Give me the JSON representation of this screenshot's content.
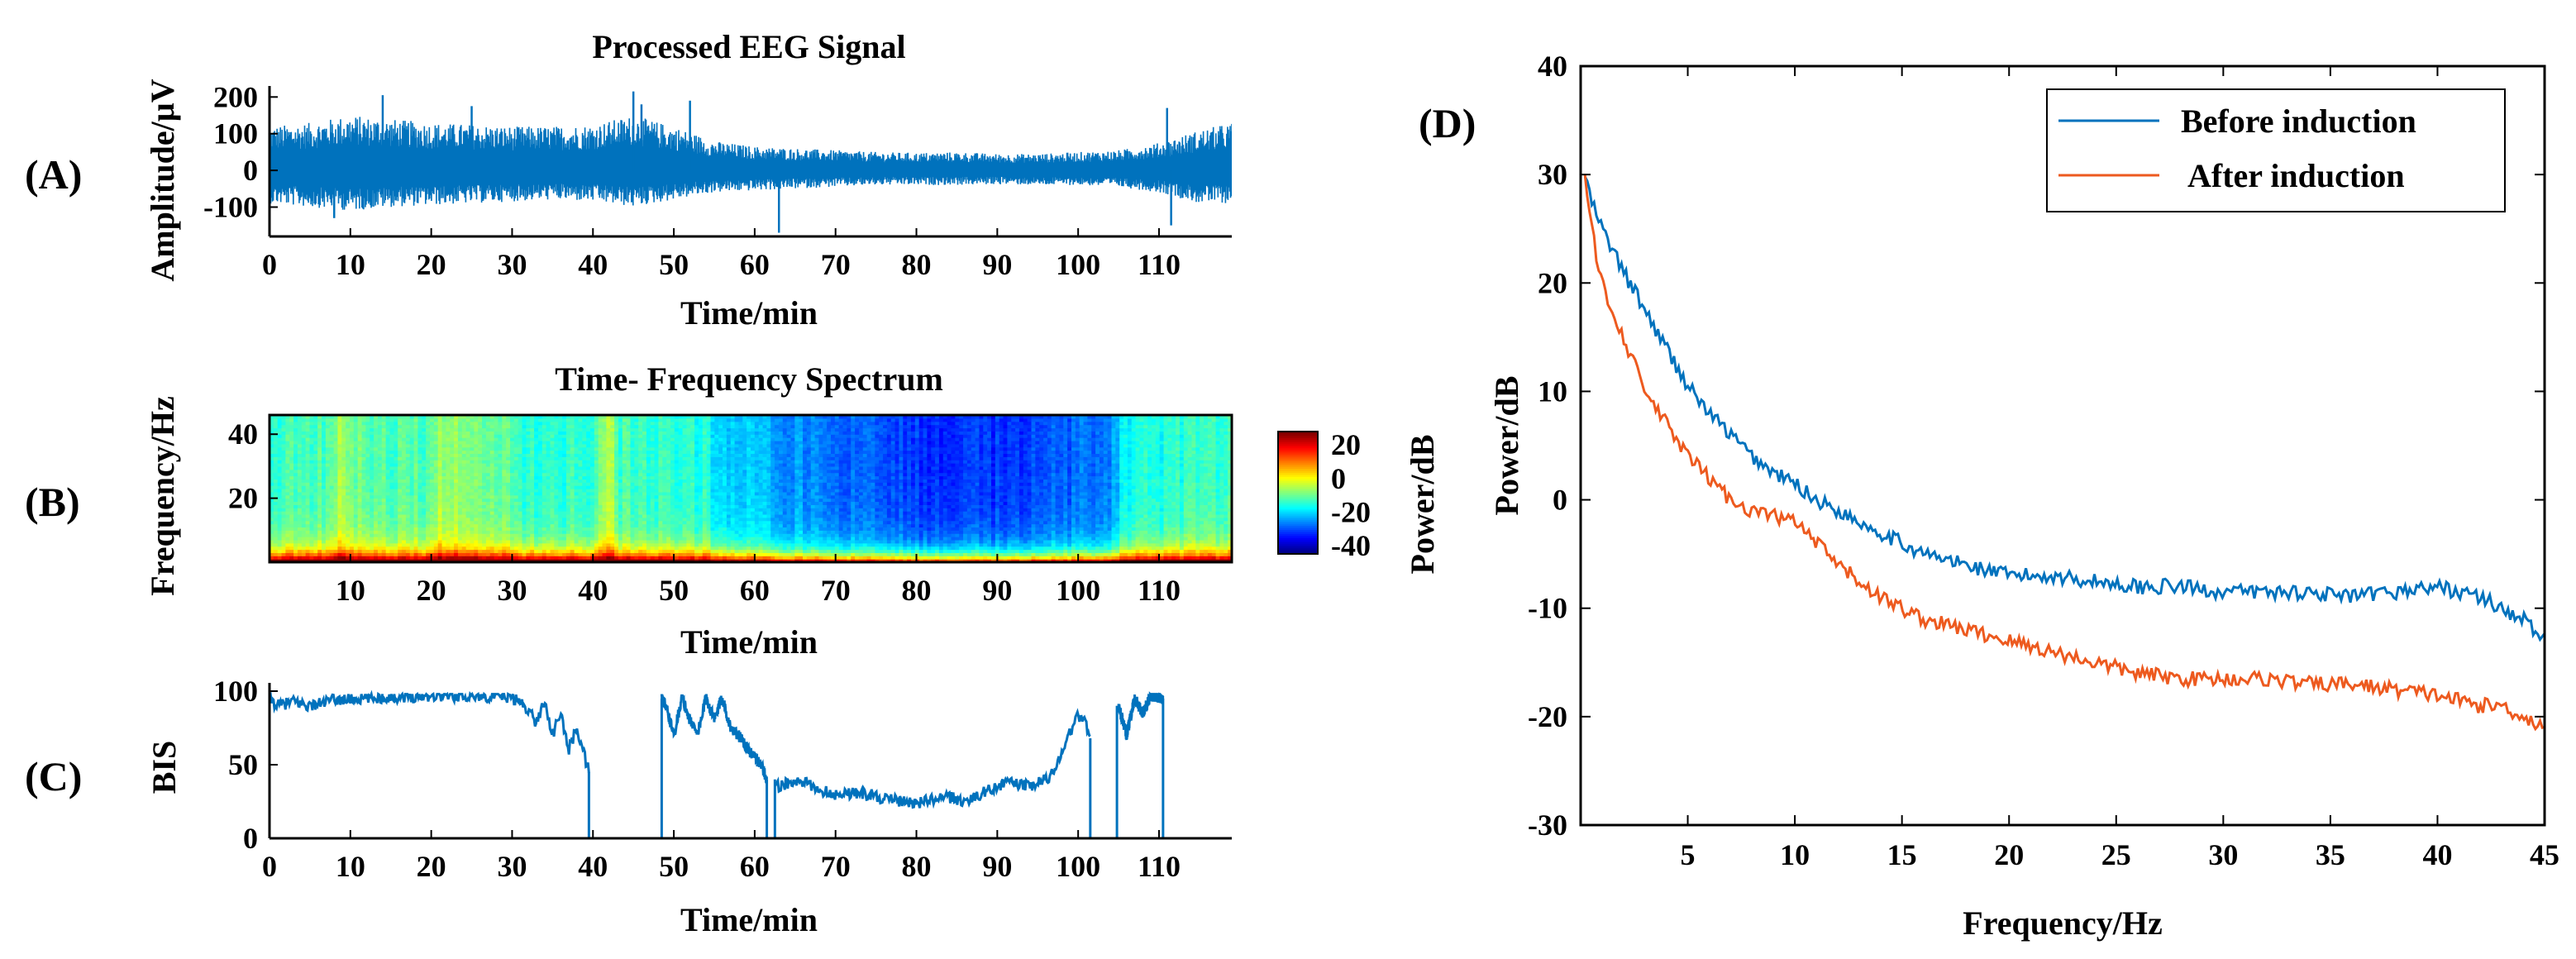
{
  "panels": {
    "A": {
      "label": "(A)"
    },
    "B": {
      "label": "(B)"
    },
    "C": {
      "label": "(C)"
    },
    "D": {
      "label": "(D)"
    }
  },
  "colors": {
    "blue": "#0072BD",
    "orange": "#ED5A1F",
    "axis": "#000000"
  },
  "chart_data": [
    {
      "id": "eeg",
      "type": "line",
      "title": "Processed EEG Signal",
      "xlabel": "Time/min",
      "ylabel": "Amplitude/µV",
      "xlim": [
        0,
        119
      ],
      "ylim": [
        -180,
        230
      ],
      "xticks": [
        0,
        10,
        20,
        30,
        40,
        50,
        60,
        70,
        80,
        90,
        100,
        110
      ],
      "yticks": [
        -100,
        0,
        100,
        200
      ],
      "envelope": {
        "t": [
          0,
          5,
          10,
          15,
          20,
          25,
          30,
          35,
          40,
          45,
          50,
          55,
          60,
          65,
          70,
          75,
          80,
          85,
          90,
          95,
          100,
          105,
          110,
          115,
          119
        ],
        "upper": [
          120,
          130,
          150,
          140,
          130,
          125,
          120,
          120,
          125,
          150,
          120,
          80,
          65,
          60,
          55,
          50,
          48,
          50,
          45,
          45,
          50,
          55,
          75,
          110,
          130
        ],
        "lower": [
          -90,
          -100,
          -110,
          -100,
          -95,
          -90,
          -85,
          -80,
          -85,
          -100,
          -80,
          -60,
          -55,
          -50,
          -45,
          -40,
          -40,
          -40,
          -38,
          -40,
          -40,
          -45,
          -60,
          -90,
          -90
        ]
      },
      "spikes": [
        {
          "t": 14,
          "v": 205
        },
        {
          "t": 45,
          "v": 215
        },
        {
          "t": 46,
          "v": 180
        },
        {
          "t": 52,
          "v": 190
        },
        {
          "t": 8,
          "v": -130
        },
        {
          "t": 63,
          "v": -170
        },
        {
          "t": 111,
          "v": 170
        },
        {
          "t": 111.5,
          "v": -150
        },
        {
          "t": 25,
          "v": 175
        }
      ]
    },
    {
      "id": "spectrogram",
      "type": "heatmap",
      "title": "Time- Frequency Spectrum",
      "xlabel": "Time/min",
      "ylabel": "Frequency/Hz",
      "xlim": [
        0,
        119
      ],
      "ylim": [
        0,
        46
      ],
      "xticks": [
        10,
        20,
        30,
        40,
        50,
        60,
        70,
        80,
        90,
        100,
        110
      ],
      "yticks": [
        20,
        40
      ],
      "colorbar": {
        "label": "Power/dB",
        "range": [
          -45,
          28
        ],
        "ticks": [
          20,
          0,
          -20,
          -40
        ]
      },
      "column_base_dB": [
        {
          "t": 0,
          "v": -14
        },
        {
          "t": 7,
          "v": -12
        },
        {
          "t": 9,
          "v": -6
        },
        {
          "t": 12,
          "v": -12
        },
        {
          "t": 19,
          "v": -12
        },
        {
          "t": 21,
          "v": -7
        },
        {
          "t": 29,
          "v": -11
        },
        {
          "t": 31,
          "v": -15
        },
        {
          "t": 40,
          "v": -14
        },
        {
          "t": 42,
          "v": -4
        },
        {
          "t": 43,
          "v": -13
        },
        {
          "t": 54,
          "v": -16
        },
        {
          "t": 56,
          "v": -21
        },
        {
          "t": 70,
          "v": -28
        },
        {
          "t": 80,
          "v": -32
        },
        {
          "t": 90,
          "v": -33
        },
        {
          "t": 97,
          "v": -30
        },
        {
          "t": 104,
          "v": -26
        },
        {
          "t": 106,
          "v": -17
        },
        {
          "t": 119,
          "v": -13
        }
      ]
    },
    {
      "id": "bis",
      "type": "line",
      "title": "",
      "xlabel": "Time/min",
      "ylabel": "BIS",
      "xlim": [
        0,
        119
      ],
      "ylim": [
        0,
        100
      ],
      "xticks": [
        0,
        10,
        20,
        30,
        40,
        50,
        60,
        70,
        80,
        90,
        100,
        110
      ],
      "yticks": [
        0,
        50,
        100
      ],
      "segments": [
        {
          "x": [
            0,
            1,
            3,
            5,
            8,
            12,
            15,
            20,
            25,
            30,
            32,
            33,
            34,
            35,
            36,
            37,
            38,
            39,
            39.5
          ],
          "y": [
            95,
            90,
            93,
            90,
            94,
            95,
            96,
            97,
            97,
            96,
            88,
            78,
            94,
            70,
            85,
            60,
            75,
            55,
            45
          ]
        },
        {
          "x": [
            48.5,
            49,
            50,
            51,
            52,
            53,
            54,
            55,
            56,
            57,
            58,
            59,
            60,
            61,
            61.5
          ],
          "y": [
            95,
            90,
            70,
            96,
            80,
            72,
            96,
            80,
            96,
            75,
            70,
            62,
            55,
            48,
            40
          ]
        },
        {
          "x": [
            62.5,
            63,
            64,
            66,
            68,
            70,
            72,
            74,
            76,
            78,
            80,
            82,
            84,
            86,
            88,
            90,
            92,
            94,
            96,
            97,
            98,
            99,
            100,
            101,
            101.5
          ],
          "y": [
            40,
            35,
            37,
            38,
            33,
            30,
            31,
            30,
            27,
            25,
            24,
            26,
            28,
            25,
            30,
            36,
            38,
            35,
            40,
            45,
            60,
            72,
            84,
            78,
            68
          ]
        },
        {
          "x": [
            105,
            106,
            107,
            108,
            109,
            110,
            110.5
          ],
          "y": [
            90,
            70,
            95,
            85,
            97,
            96,
            95
          ]
        }
      ],
      "drops": [
        {
          "x": 39.5,
          "from": 45
        },
        {
          "x": 48.5,
          "from": 95
        },
        {
          "x": 61.5,
          "from": 40
        },
        {
          "x": 62.5,
          "from": 40
        },
        {
          "x": 101.5,
          "from": 68
        },
        {
          "x": 104.8,
          "from": 90
        },
        {
          "x": 110.5,
          "from": 95
        }
      ]
    },
    {
      "id": "psd",
      "type": "line",
      "title": "",
      "xlabel": "Frequency/Hz",
      "ylabel": "Power/dB",
      "xlim": [
        0,
        45
      ],
      "ylim": [
        -30,
        40
      ],
      "xticks": [
        5,
        10,
        15,
        20,
        25,
        30,
        35,
        40,
        45
      ],
      "yticks": [
        -30,
        -20,
        -10,
        0,
        10,
        20,
        30,
        40
      ],
      "legend": {
        "position": "top-right",
        "entries": [
          "Before induction",
          "After induction"
        ]
      },
      "series": [
        {
          "name": "Before induction",
          "color": "#0072BD",
          "x": [
            0.2,
            0.5,
            1,
            2,
            3,
            4,
            5,
            6,
            7,
            8,
            9,
            10,
            11,
            12,
            13,
            14,
            15,
            16,
            17,
            18,
            19,
            20,
            22,
            24,
            26,
            28,
            30,
            32,
            34,
            36,
            38,
            40,
            42,
            43,
            44,
            45
          ],
          "y": [
            30,
            27.5,
            25,
            21,
            17.5,
            14,
            10.5,
            8,
            6,
            4,
            2.5,
            1.5,
            0,
            -1,
            -2,
            -3,
            -4,
            -5,
            -5.5,
            -6,
            -6.5,
            -7,
            -7,
            -7.5,
            -8,
            -8,
            -8.5,
            -8.5,
            -8.5,
            -9,
            -8.5,
            -8,
            -9,
            -10,
            -11,
            -13
          ]
        },
        {
          "name": "After induction",
          "color": "#ED5A1F",
          "x": [
            0.2,
            0.5,
            1,
            2,
            3,
            4,
            5,
            6,
            7,
            8,
            9,
            10,
            11,
            12,
            13,
            14,
            15,
            16,
            17,
            18,
            19,
            20,
            22,
            24,
            26,
            28,
            30,
            32,
            34,
            36,
            38,
            40,
            42,
            43,
            44,
            45
          ],
          "y": [
            30,
            25,
            20,
            15,
            10,
            7,
            4,
            2,
            0,
            -1,
            -1.5,
            -2,
            -4,
            -6,
            -7.5,
            -9,
            -10,
            -11,
            -11.5,
            -12,
            -12.5,
            -13,
            -14,
            -15,
            -16,
            -16.5,
            -16.5,
            -16.5,
            -17,
            -17,
            -17.5,
            -18,
            -19,
            -19,
            -20,
            -21
          ]
        }
      ]
    }
  ]
}
